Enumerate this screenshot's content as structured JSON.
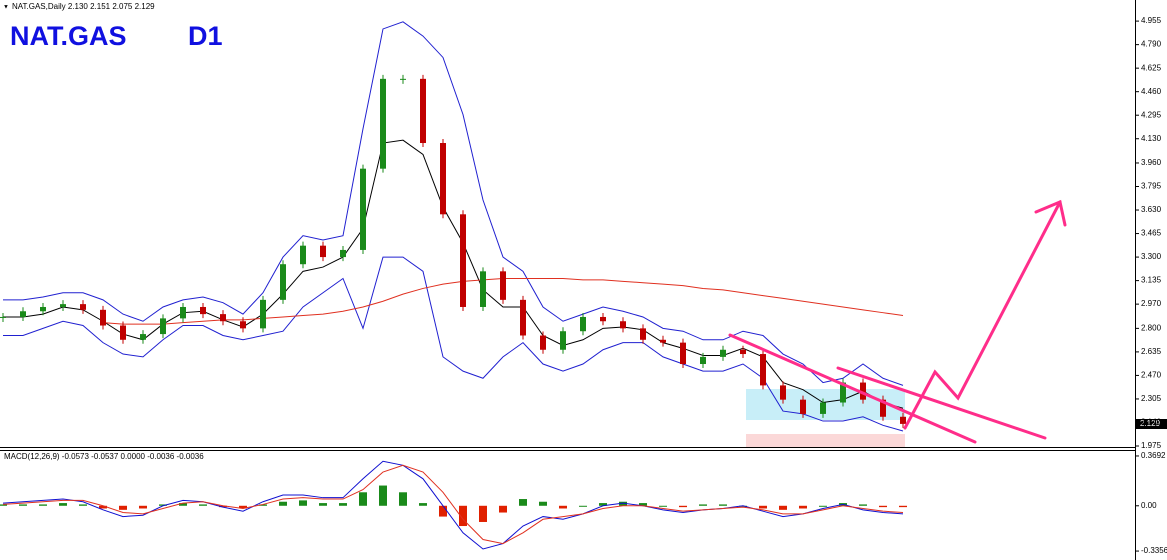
{
  "header": "NAT.GAS,Daily  2.130 2.151 2.075 2.129",
  "title": {
    "symbol": "NAT.GAS",
    "period": "D1"
  },
  "last_price": "2.129",
  "chart_data": {
    "type": "candlestick",
    "x": [
      0,
      20,
      40,
      60,
      80,
      100,
      120,
      140,
      160,
      180,
      200,
      220,
      240,
      260,
      280,
      300,
      320,
      340,
      360,
      380,
      400,
      420,
      440,
      460,
      480,
      500,
      520,
      540,
      560,
      580,
      600,
      620,
      640,
      660,
      680,
      700,
      720,
      740,
      760,
      780,
      800,
      820,
      840,
      860,
      880,
      900
    ],
    "close": [
      2.88,
      2.92,
      2.95,
      2.97,
      2.93,
      2.82,
      2.72,
      2.76,
      2.87,
      2.95,
      2.9,
      2.85,
      2.8,
      3.0,
      3.25,
      3.38,
      3.3,
      3.35,
      3.92,
      4.55,
      4.55,
      4.1,
      3.6,
      2.95,
      3.2,
      3.0,
      2.75,
      2.65,
      2.78,
      2.88,
      2.85,
      2.8,
      2.72,
      2.7,
      2.55,
      2.6,
      2.65,
      2.62,
      2.4,
      2.3,
      2.2,
      2.28,
      2.42,
      2.3,
      2.18,
      2.13
    ],
    "up_color": "#1a8a1a",
    "down_color": "#c00000",
    "series": [
      {
        "color": "#2020d0",
        "values": [
          3.0,
          3.0,
          3.02,
          3.05,
          3.05,
          3.0,
          2.9,
          2.85,
          2.95,
          3.0,
          3.02,
          2.98,
          2.9,
          3.05,
          3.3,
          3.45,
          3.42,
          3.45,
          4.2,
          4.9,
          4.95,
          4.85,
          4.7,
          4.3,
          3.7,
          3.3,
          3.2,
          2.95,
          2.85,
          2.9,
          2.95,
          2.92,
          2.88,
          2.8,
          2.78,
          2.72,
          2.72,
          2.78,
          2.75,
          2.62,
          2.55,
          2.42,
          2.45,
          2.55,
          2.45,
          2.4
        ]
      },
      {
        "color": "#2020d0",
        "values": [
          2.75,
          2.75,
          2.8,
          2.85,
          2.82,
          2.7,
          2.62,
          2.6,
          2.72,
          2.82,
          2.82,
          2.75,
          2.72,
          2.75,
          2.78,
          2.95,
          3.05,
          3.15,
          2.8,
          3.3,
          3.3,
          3.2,
          2.6,
          2.5,
          2.45,
          2.6,
          2.7,
          2.55,
          2.5,
          2.55,
          2.65,
          2.7,
          2.7,
          2.6,
          2.55,
          2.5,
          2.5,
          2.55,
          2.45,
          2.22,
          2.2,
          2.15,
          2.15,
          2.18,
          2.12,
          2.08
        ]
      },
      {
        "color": "#000000",
        "values": [
          2.88,
          2.88,
          2.9,
          2.95,
          2.93,
          2.85,
          2.76,
          2.72,
          2.83,
          2.91,
          2.92,
          2.86,
          2.81,
          2.9,
          3.04,
          3.2,
          3.23,
          3.3,
          3.5,
          4.1,
          4.12,
          4.02,
          3.65,
          3.4,
          3.07,
          2.95,
          2.95,
          2.75,
          2.68,
          2.72,
          2.8,
          2.81,
          2.79,
          2.7,
          2.66,
          2.61,
          2.61,
          2.66,
          2.6,
          2.42,
          2.37,
          2.28,
          2.3,
          2.36,
          2.28,
          2.24
        ]
      },
      {
        "color": "#e03020",
        "values": [
          null,
          null,
          null,
          null,
          null,
          2.84,
          2.83,
          2.83,
          2.83,
          2.84,
          2.85,
          2.86,
          2.86,
          2.87,
          2.88,
          2.89,
          2.9,
          2.92,
          2.95,
          2.99,
          3.04,
          3.08,
          3.11,
          3.13,
          3.14,
          3.15,
          3.15,
          3.15,
          3.15,
          3.14,
          3.14,
          3.13,
          3.12,
          3.11,
          3.1,
          3.08,
          3.07,
          3.05,
          3.03,
          3.01,
          2.99,
          2.97,
          2.95,
          2.93,
          2.91,
          2.89
        ]
      }
    ],
    "ylim": [
      1.968,
      5.103
    ],
    "yticks": [
      4.955,
      {
        "value": 4.79,
        "label": "4.790"
      },
      4.625,
      {
        "value": 4.46,
        "label": "4.460"
      },
      4.295,
      {
        "value": 4.13,
        "label": "4.130"
      },
      {
        "value": 3.96,
        "label": "3.960"
      },
      3.795,
      {
        "value": 3.63,
        "label": "3.630"
      },
      3.465,
      {
        "value": 3.3,
        "label": "3.300"
      },
      3.135,
      {
        "value": 2.97,
        "label": "2.970"
      },
      {
        "value": 2.8,
        "label": "2.800"
      },
      2.635,
      {
        "value": 2.47,
        "label": "2.470"
      },
      2.305,
      {
        "value": 2.14,
        "label": "2.140"
      },
      1.975
    ],
    "macd": {
      "label": "MACD(12,26,9) -0.0573 -0.0537 0.0000 -0.0036 -0.0036",
      "histogram": [
        0.01,
        0.01,
        0.01,
        0.02,
        0.01,
        -0.02,
        -0.03,
        -0.02,
        0.01,
        0.02,
        0.01,
        -0.01,
        -0.02,
        0.01,
        0.03,
        0.04,
        0.02,
        0.02,
        0.1,
        0.15,
        0.1,
        0.02,
        -0.08,
        -0.15,
        -0.12,
        -0.05,
        0.05,
        0.03,
        -0.02,
        0,
        0.02,
        0.03,
        0.02,
        0,
        -0.01,
        0.01,
        0.01,
        0,
        -0.02,
        -0.03,
        -0.02,
        0,
        0.02,
        0.01,
        -0.01,
        -0.01
      ],
      "pos_color": "#1a8a1a",
      "neg_color": "#e02000",
      "series": [
        {
          "color": "#1010d0",
          "values": [
            0.02,
            0.03,
            0.04,
            0.05,
            0.03,
            -0.03,
            -0.08,
            -0.07,
            0,
            0.04,
            0.03,
            -0.01,
            -0.04,
            0.03,
            0.08,
            0.08,
            0.06,
            0.06,
            0.2,
            0.33,
            0.3,
            0.2,
            0,
            -0.2,
            -0.32,
            -0.28,
            -0.15,
            -0.08,
            -0.1,
            -0.06,
            0,
            0.02,
            0,
            -0.03,
            -0.05,
            -0.03,
            -0.02,
            0,
            -0.04,
            -0.08,
            -0.06,
            -0.02,
            0.01,
            -0.03,
            -0.05,
            -0.06
          ]
        },
        {
          "color": "#e03020",
          "values": [
            0.01,
            0.02,
            0.03,
            0.04,
            0.04,
            0,
            -0.05,
            -0.06,
            -0.02,
            0.02,
            0.03,
            0,
            -0.02,
            0.01,
            0.05,
            0.06,
            0.05,
            0.05,
            0.12,
            0.25,
            0.3,
            0.25,
            0.1,
            -0.1,
            -0.25,
            -0.28,
            -0.2,
            -0.1,
            -0.08,
            -0.06,
            -0.02,
            0,
            0,
            -0.02,
            -0.04,
            -0.03,
            -0.02,
            -0.01,
            -0.03,
            -0.06,
            -0.06,
            -0.03,
            0,
            -0.02,
            -0.04,
            -0.05
          ]
        }
      ],
      "ylim": [
        -0.387,
        0.406
      ],
      "yticks": [
        0.3692,
        {
          "value": 0,
          "label": "0.00"
        },
        -0.3356
      ]
    }
  }
}
